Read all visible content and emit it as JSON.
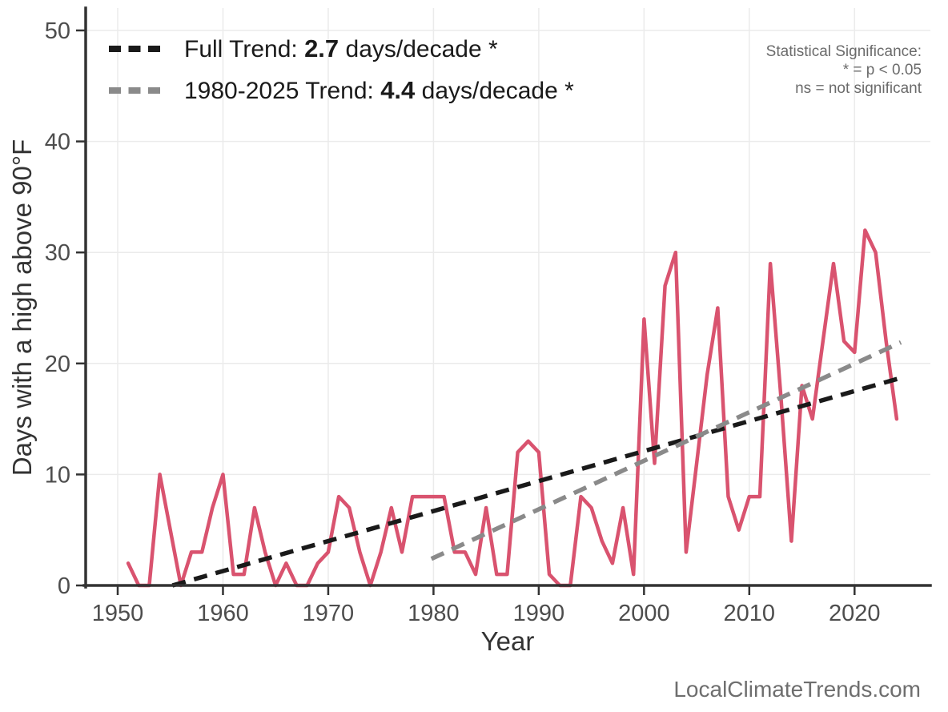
{
  "chart_data": {
    "type": "line",
    "title": "",
    "xlabel": "Year",
    "ylabel": "Days with a high above 90°F",
    "xlim": [
      1947,
      2027
    ],
    "ylim": [
      0,
      52
    ],
    "xticks": [
      1950,
      1960,
      1970,
      1980,
      1990,
      2000,
      2010,
      2020
    ],
    "yticks": [
      0,
      10,
      20,
      30,
      40,
      50
    ],
    "grid": true,
    "legend_position": "top-left",
    "x": [
      1951,
      1952,
      1953,
      1954,
      1955,
      1956,
      1957,
      1958,
      1959,
      1960,
      1961,
      1962,
      1963,
      1964,
      1965,
      1966,
      1967,
      1968,
      1969,
      1970,
      1971,
      1972,
      1973,
      1974,
      1975,
      1976,
      1977,
      1978,
      1979,
      1980,
      1981,
      1982,
      1983,
      1984,
      1985,
      1986,
      1987,
      1988,
      1989,
      1990,
      1991,
      1992,
      1993,
      1994,
      1995,
      1996,
      1997,
      1998,
      1999,
      2000,
      2001,
      2002,
      2003,
      2004,
      2005,
      2006,
      2007,
      2008,
      2009,
      2010,
      2011,
      2012,
      2013,
      2014,
      2015,
      2016,
      2017,
      2018,
      2019,
      2020,
      2021,
      2022,
      2023,
      2024
    ],
    "series": [
      {
        "name": "Annual days with a high above 90°F",
        "color": "#d9536f",
        "values": [
          2,
          0,
          0,
          10,
          5,
          0,
          3,
          3,
          7,
          10,
          1,
          1,
          7,
          3,
          0,
          2,
          0,
          0,
          2,
          3,
          8,
          7,
          3,
          0,
          3,
          7,
          3,
          8,
          8,
          8,
          8,
          3,
          3,
          1,
          7,
          1,
          1,
          12,
          13,
          12,
          1,
          0,
          0,
          8,
          7,
          4,
          2,
          7,
          1,
          24,
          11,
          27,
          30,
          3,
          11,
          19,
          25,
          8,
          5,
          8,
          8,
          29,
          17,
          4,
          18,
          15,
          22,
          29,
          22,
          21,
          32,
          30,
          22,
          15
        ]
      }
    ],
    "trend_lines": [
      {
        "name": "Full Trend",
        "slope_days_per_decade": 2.7,
        "significant": true,
        "color": "#1a1a1a",
        "x1": 1955.2,
        "y1": 0,
        "x2": 2024.4,
        "y2": 18.7
      },
      {
        "name": "1980-2025 Trend",
        "slope_days_per_decade": 4.4,
        "significant": true,
        "color": "#8a8a8a",
        "x1": 1979.8,
        "y1": 2.4,
        "x2": 2024.4,
        "y2": 21.9
      }
    ],
    "legend_entries": [
      {
        "prefix": "Full Trend: ",
        "value": "2.7",
        "suffix": " days/decade *",
        "color": "#1a1a1a"
      },
      {
        "prefix": "1980-2025 Trend: ",
        "value": "4.4",
        "suffix": " days/decade *",
        "color": "#8a8a8a"
      }
    ],
    "annotation": {
      "line1": "Statistical Significance:",
      "line2": "* = p < 0.05",
      "line3": "ns = not significant"
    }
  },
  "watermark": {
    "text": "LocalClimateTrends.com"
  },
  "colors": {
    "series_line": "#d9536f",
    "full_trend": "#1a1a1a",
    "recent_trend": "#8a8a8a",
    "gridline": "#ebebeb",
    "axis": "#333333",
    "tick_label": "#4d4d4d",
    "note_text": "#6b6b6b"
  }
}
